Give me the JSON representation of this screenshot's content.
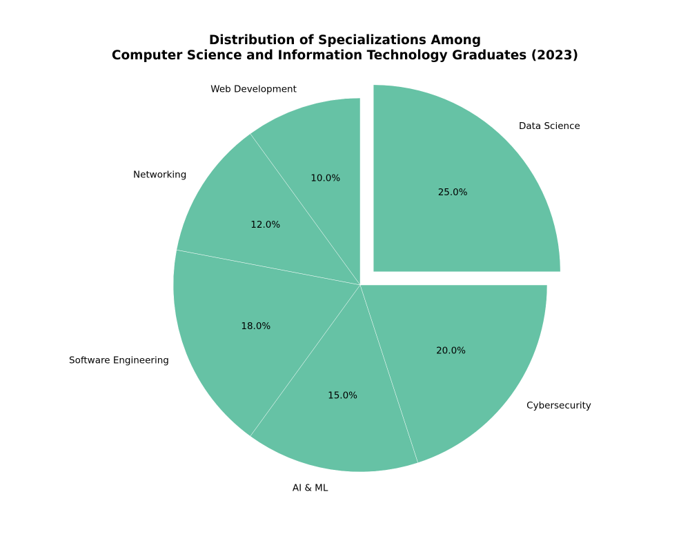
{
  "chart_data": {
    "type": "pie",
    "title": {
      "line1": "Distribution of Specializations Among",
      "line2": "Computer Science and Information Technology Graduates (2023)"
    },
    "start_angle_deg": 90,
    "direction": "counterclockwise",
    "slices": [
      {
        "label": "Web Development",
        "value": 10.0,
        "pct_label": "10.0%",
        "exploded": false
      },
      {
        "label": "Networking",
        "value": 12.0,
        "pct_label": "12.0%",
        "exploded": false
      },
      {
        "label": "Software Engineering",
        "value": 18.0,
        "pct_label": "18.0%",
        "exploded": false
      },
      {
        "label": "AI & ML",
        "value": 15.0,
        "pct_label": "15.0%",
        "exploded": false
      },
      {
        "label": "Cybersecurity",
        "value": 20.0,
        "pct_label": "20.0%",
        "exploded": false
      },
      {
        "label": "Data Science",
        "value": 25.0,
        "pct_label": "25.0%",
        "exploded": true
      }
    ],
    "colors": {
      "slice_fill": "#66c2a5",
      "slice_edge": "#ffffff"
    }
  }
}
